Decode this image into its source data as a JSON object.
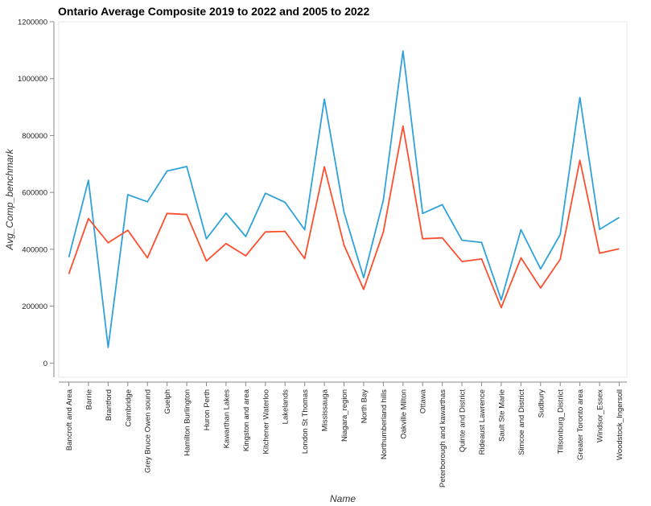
{
  "chart_data": {
    "type": "line",
    "title": "Ontario Average Composite 2019 to 2022 and 2005 to 2022",
    "xlabel": "Name",
    "ylabel": "Avg_Comp_benchmark",
    "ylim": [
      -50000,
      1200000
    ],
    "yticks": [
      0,
      200000,
      400000,
      600000,
      800000,
      1000000,
      1200000
    ],
    "yticks_text": [
      "0",
      "200000",
      "400000",
      "600000",
      "800000",
      "1000000",
      "1200000"
    ],
    "grid": false,
    "legend": "none",
    "categories": [
      "Bancroft and Area",
      "Barrie",
      "Brantford",
      "Cambridge",
      "Grey Bruce Owen sound",
      "Guelph",
      "Hamilton Burlington",
      "Huron Perth",
      "Kawarthan Lakes",
      "Kingston and area",
      "Kitchener Waterloo",
      "Lakelands",
      "London St Thomas",
      "Mississauga",
      "Niagara_region",
      "North Bay",
      "Northumberland hills",
      "Oakville Milton",
      "Ottawa",
      "Peterborough and kawarthas",
      "Quinte and District",
      "Rideaust Lawrence",
      "Sault Ste Marie",
      "Simcoe and District",
      "Sudbury",
      "Tillsonburg_District",
      "Greater Toronto area",
      "Windsor_Essex",
      "Woodstock_Ingersoll"
    ],
    "series": [
      {
        "color": "#30a2da",
        "values": [
          372000,
          643000,
          55000,
          592000,
          567000,
          675000,
          691000,
          437000,
          527000,
          445000,
          597000,
          565000,
          469000,
          928000,
          530000,
          300000,
          573000,
          1097000,
          526000,
          557000,
          432000,
          424000,
          222000,
          469000,
          331000,
          452000,
          934000,
          470000,
          512000
        ]
      },
      {
        "color": "#fc4f30",
        "values": [
          313000,
          508000,
          423000,
          467000,
          370000,
          526000,
          522000,
          359000,
          420000,
          377000,
          461000,
          463000,
          367000,
          690000,
          415000,
          259000,
          461000,
          833000,
          437000,
          440000,
          357000,
          366000,
          195000,
          370000,
          264000,
          365000,
          713000,
          386000,
          402000
        ]
      }
    ]
  }
}
